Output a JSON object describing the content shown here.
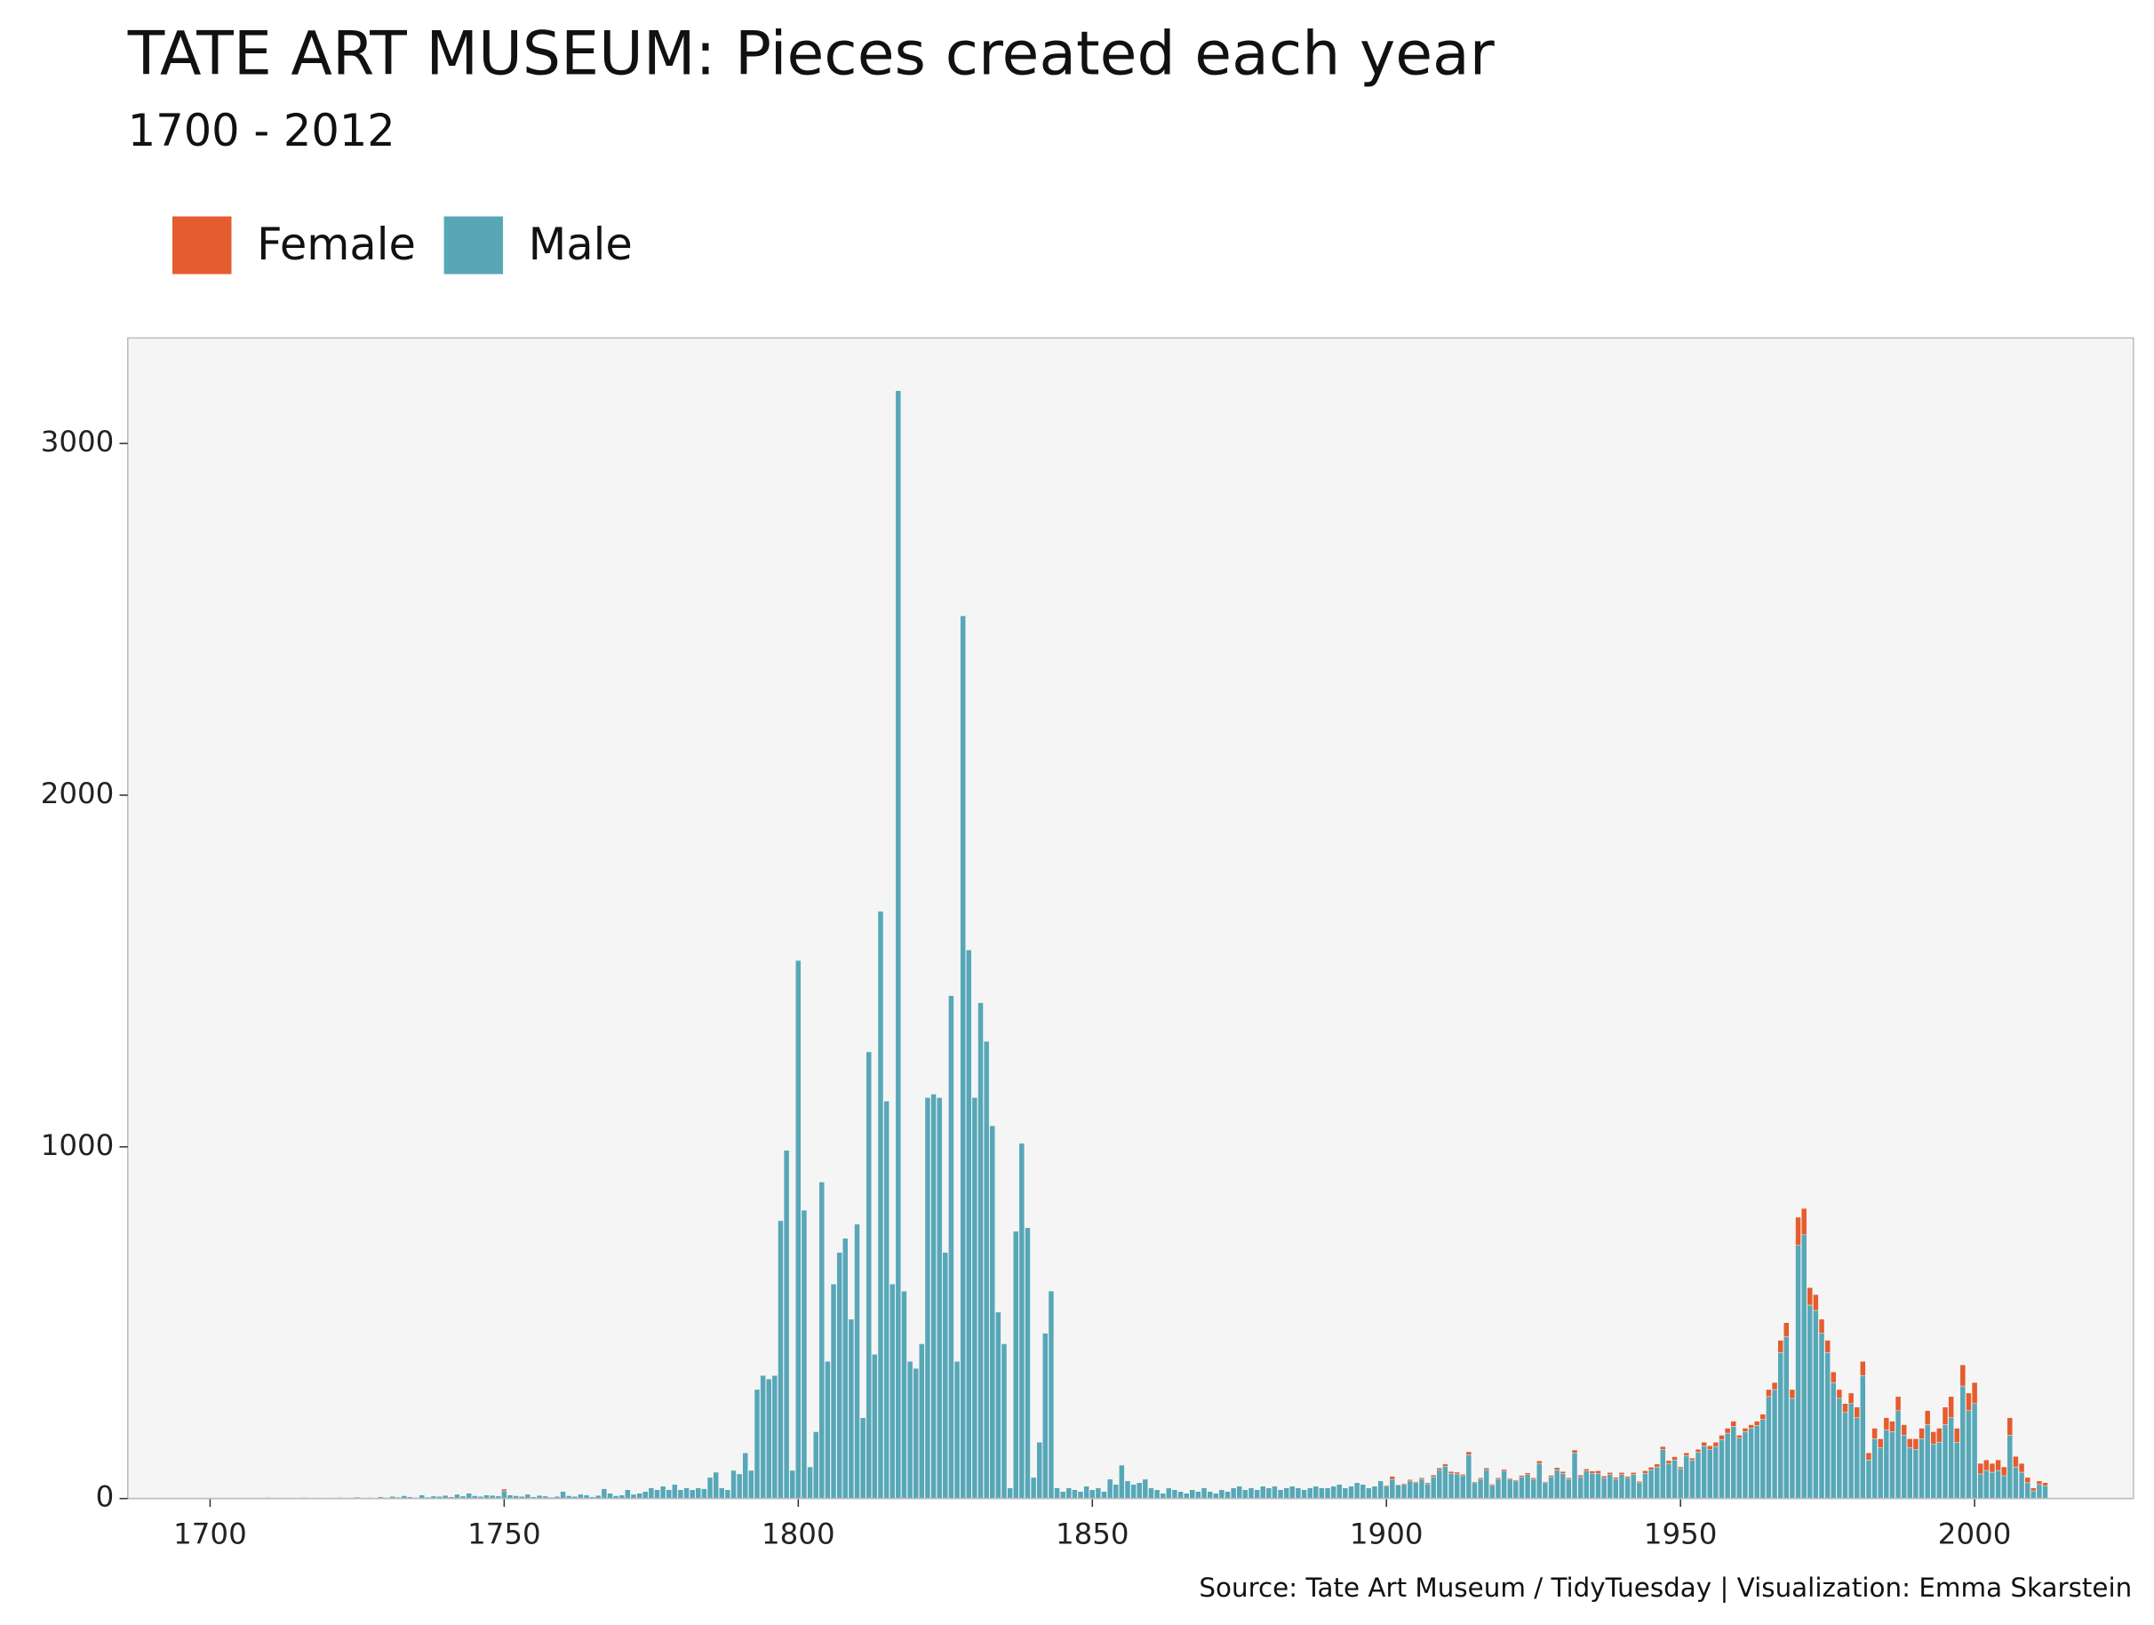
{
  "chart_data": {
    "type": "bar",
    "stacked": true,
    "title": "TATE ART MUSEUM: Pieces created each year",
    "subtitle": "1700 - 2012",
    "caption": "Source: Tate Art Museum / TidyTuesday | Visualization: Emma Skarstein",
    "legend": "top-left",
    "grid": false,
    "xlim": [
      1686,
      2027
    ],
    "xticks": [
      1700,
      1750,
      1800,
      1850,
      1900,
      1950,
      2000
    ],
    "ylim": [
      0,
      3300
    ],
    "yticks": [
      0,
      1000,
      2000,
      3000
    ],
    "x": [
      1700,
      1701,
      1702,
      1703,
      1704,
      1705,
      1706,
      1707,
      1708,
      1709,
      1710,
      1711,
      1712,
      1713,
      1714,
      1715,
      1716,
      1717,
      1718,
      1719,
      1720,
      1721,
      1722,
      1723,
      1724,
      1725,
      1726,
      1727,
      1728,
      1729,
      1730,
      1731,
      1732,
      1733,
      1734,
      1735,
      1736,
      1737,
      1738,
      1739,
      1740,
      1741,
      1742,
      1743,
      1744,
      1745,
      1746,
      1747,
      1748,
      1749,
      1750,
      1751,
      1752,
      1753,
      1754,
      1755,
      1756,
      1757,
      1758,
      1759,
      1760,
      1761,
      1762,
      1763,
      1764,
      1765,
      1766,
      1767,
      1768,
      1769,
      1770,
      1771,
      1772,
      1773,
      1774,
      1775,
      1776,
      1777,
      1778,
      1779,
      1780,
      1781,
      1782,
      1783,
      1784,
      1785,
      1786,
      1787,
      1788,
      1789,
      1790,
      1791,
      1792,
      1793,
      1794,
      1795,
      1796,
      1797,
      1798,
      1799,
      1800,
      1801,
      1802,
      1803,
      1804,
      1805,
      1806,
      1807,
      1808,
      1809,
      1810,
      1811,
      1812,
      1813,
      1814,
      1815,
      1816,
      1817,
      1818,
      1819,
      1820,
      1821,
      1822,
      1823,
      1824,
      1825,
      1826,
      1827,
      1828,
      1829,
      1830,
      1831,
      1832,
      1833,
      1834,
      1835,
      1836,
      1837,
      1838,
      1839,
      1840,
      1841,
      1842,
      1843,
      1844,
      1845,
      1846,
      1847,
      1848,
      1849,
      1850,
      1851,
      1852,
      1853,
      1854,
      1855,
      1856,
      1857,
      1858,
      1859,
      1860,
      1861,
      1862,
      1863,
      1864,
      1865,
      1866,
      1867,
      1868,
      1869,
      1870,
      1871,
      1872,
      1873,
      1874,
      1875,
      1876,
      1877,
      1878,
      1879,
      1880,
      1881,
      1882,
      1883,
      1884,
      1885,
      1886,
      1887,
      1888,
      1889,
      1890,
      1891,
      1892,
      1893,
      1894,
      1895,
      1896,
      1897,
      1898,
      1899,
      1900,
      1901,
      1902,
      1903,
      1904,
      1905,
      1906,
      1907,
      1908,
      1909,
      1910,
      1911,
      1912,
      1913,
      1914,
      1915,
      1916,
      1917,
      1918,
      1919,
      1920,
      1921,
      1922,
      1923,
      1924,
      1925,
      1926,
      1927,
      1928,
      1929,
      1930,
      1931,
      1932,
      1933,
      1934,
      1935,
      1936,
      1937,
      1938,
      1939,
      1940,
      1941,
      1942,
      1943,
      1944,
      1945,
      1946,
      1947,
      1948,
      1949,
      1950,
      1951,
      1952,
      1953,
      1954,
      1955,
      1956,
      1957,
      1958,
      1959,
      1960,
      1961,
      1962,
      1963,
      1964,
      1965,
      1966,
      1967,
      1968,
      1969,
      1970,
      1971,
      1972,
      1973,
      1974,
      1975,
      1976,
      1977,
      1978,
      1979,
      1980,
      1981,
      1982,
      1983,
      1984,
      1985,
      1986,
      1987,
      1988,
      1989,
      1990,
      1991,
      1992,
      1993,
      1994,
      1995,
      1996,
      1997,
      1998,
      1999,
      2000,
      2001,
      2002,
      2003,
      2004,
      2005,
      2006,
      2007,
      2008,
      2009,
      2010,
      2011,
      2012
    ],
    "series": [
      {
        "name": "Female",
        "color": "#e55c2e",
        "values": [
          0,
          0,
          0,
          0,
          0,
          0,
          0,
          0,
          0,
          0,
          0,
          0,
          0,
          0,
          0,
          0,
          0,
          0,
          0,
          0,
          0,
          0,
          0,
          0,
          0,
          0,
          0,
          0,
          0,
          0,
          0,
          0,
          0,
          0,
          0,
          0,
          0,
          0,
          0,
          0,
          0,
          0,
          0,
          0,
          0,
          0,
          0,
          0,
          0,
          0,
          5,
          0,
          0,
          0,
          0,
          0,
          0,
          0,
          0,
          0,
          0,
          0,
          0,
          0,
          0,
          0,
          0,
          0,
          0,
          0,
          0,
          0,
          0,
          0,
          0,
          0,
          0,
          0,
          0,
          0,
          0,
          0,
          0,
          0,
          0,
          0,
          0,
          0,
          0,
          0,
          0,
          0,
          0,
          0,
          0,
          0,
          0,
          0,
          0,
          0,
          0,
          0,
          0,
          0,
          0,
          0,
          0,
          0,
          0,
          0,
          0,
          0,
          0,
          0,
          0,
          0,
          0,
          0,
          0,
          0,
          0,
          0,
          0,
          0,
          0,
          0,
          0,
          0,
          0,
          0,
          0,
          0,
          0,
          0,
          0,
          0,
          0,
          0,
          0,
          0,
          0,
          0,
          0,
          0,
          0,
          0,
          0,
          0,
          0,
          0,
          0,
          0,
          0,
          0,
          0,
          0,
          0,
          0,
          0,
          0,
          0,
          0,
          0,
          0,
          0,
          0,
          0,
          0,
          0,
          0,
          0,
          0,
          0,
          0,
          0,
          0,
          0,
          0,
          0,
          0,
          0,
          0,
          0,
          0,
          0,
          0,
          0,
          0,
          0,
          0,
          0,
          0,
          0,
          0,
          0,
          0,
          0,
          0,
          0,
          0,
          3,
          8,
          2,
          3,
          4,
          3,
          4,
          3,
          5,
          5,
          6,
          5,
          5,
          4,
          8,
          3,
          4,
          5,
          3,
          4,
          5,
          3,
          3,
          4,
          5,
          4,
          7,
          3,
          4,
          6,
          5,
          4,
          8,
          5,
          6,
          6,
          7,
          6,
          6,
          5,
          6,
          5,
          6,
          4,
          7,
          7,
          8,
          8,
          8,
          9,
          5,
          8,
          6,
          8,
          10,
          10,
          12,
          12,
          14,
          15,
          8,
          10,
          10,
          12,
          15,
          20,
          20,
          35,
          40,
          25,
          80,
          75,
          50,
          45,
          40,
          35,
          30,
          25,
          25,
          30,
          30,
          40,
          20,
          30,
          25,
          35,
          30,
          40,
          30,
          25,
          30,
          30,
          40,
          35,
          40,
          50,
          60,
          40,
          60,
          50,
          60,
          30,
          30,
          25,
          30,
          25,
          50,
          30,
          25,
          15,
          8,
          10,
          8
        ]
      },
      {
        "name": "Male",
        "color": "#58a7b7",
        "values": [
          0,
          0,
          0,
          0,
          0,
          0,
          0,
          0,
          0,
          0,
          3,
          1,
          2,
          0,
          2,
          1,
          3,
          2,
          1,
          2,
          2,
          1,
          3,
          2,
          1,
          4,
          2,
          3,
          1,
          5,
          3,
          6,
          4,
          8,
          5,
          3,
          10,
          4,
          7,
          6,
          9,
          5,
          12,
          7,
          15,
          8,
          6,
          10,
          9,
          7,
          22,
          10,
          8,
          6,
          12,
          5,
          9,
          7,
          4,
          6,
          20,
          8,
          6,
          12,
          10,
          5,
          9,
          28,
          15,
          8,
          10,
          25,
          12,
          15,
          20,
          30,
          25,
          35,
          25,
          40,
          25,
          30,
          25,
          30,
          28,
          60,
          75,
          30,
          25,
          80,
          70,
          130,
          80,
          310,
          350,
          340,
          350,
          790,
          990,
          80,
          1530,
          820,
          90,
          190,
          900,
          390,
          610,
          700,
          740,
          510,
          780,
          230,
          1270,
          410,
          1670,
          1130,
          610,
          3150,
          590,
          390,
          370,
          440,
          1140,
          1150,
          1140,
          700,
          1430,
          390,
          2510,
          1560,
          1140,
          1410,
          1300,
          1060,
          530,
          440,
          30,
          760,
          1010,
          770,
          60,
          160,
          470,
          590,
          30,
          20,
          30,
          25,
          20,
          35,
          25,
          30,
          20,
          55,
          40,
          95,
          50,
          40,
          45,
          55,
          30,
          25,
          15,
          30,
          25,
          20,
          15,
          25,
          20,
          30,
          20,
          15,
          25,
          20,
          30,
          35,
          25,
          30,
          25,
          35,
          30,
          35,
          25,
          30,
          35,
          30,
          25,
          30,
          35,
          30,
          30,
          35,
          40,
          30,
          35,
          45,
          40,
          30,
          35,
          50,
          35,
          55,
          38,
          40,
          50,
          45,
          55,
          42,
          62,
          82,
          92,
          72,
          70,
          65,
          125,
          45,
          55,
          82,
          38,
          55,
          78,
          55,
          50,
          62,
          68,
          55,
          100,
          45,
          62,
          82,
          72,
          55,
          130,
          62,
          78,
          72,
          72,
          58,
          68,
          55,
          68,
          58,
          68,
          45,
          72,
          82,
          90,
          140,
          100,
          110,
          85,
          122,
          109,
          132,
          150,
          140,
          148,
          168,
          186,
          205,
          172,
          190,
          200,
          208,
          225,
          290,
          310,
          415,
          460,
          285,
          720,
          750,
          550,
          535,
          470,
          415,
          330,
          285,
          245,
          270,
          230,
          350,
          110,
          170,
          145,
          195,
          190,
          250,
          180,
          145,
          140,
          170,
          210,
          155,
          160,
          210,
          230,
          160,
          320,
          250,
          270,
          70,
          80,
          75,
          80,
          65,
          180,
          90,
          75,
          45,
          22,
          40,
          37
        ]
      }
    ]
  }
}
